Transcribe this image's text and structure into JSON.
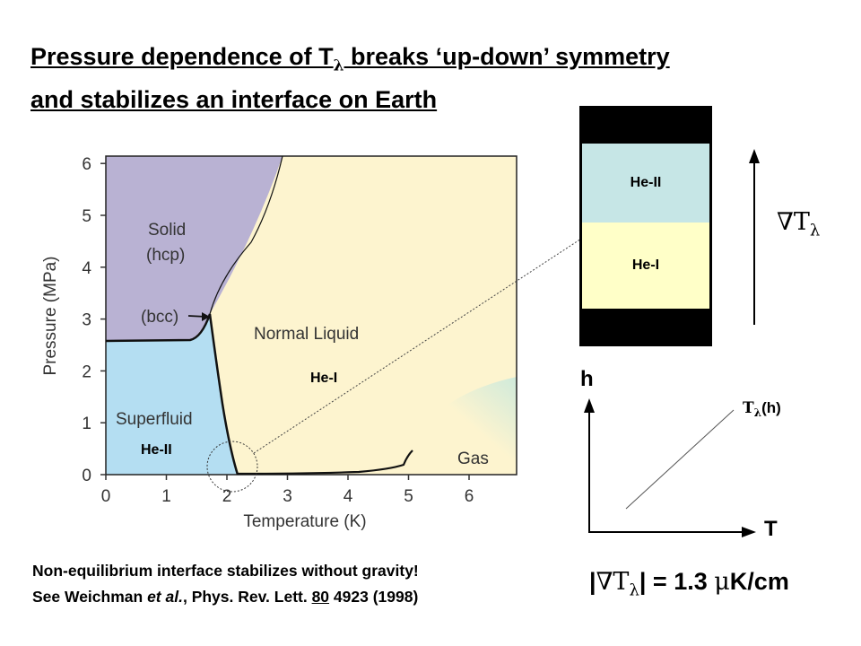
{
  "title": {
    "line1_pre": "Pressure dependence of T",
    "line1_sub": "λ",
    "line1_post": " breaks ‘up-down’ symmetry ",
    "line2": "and stabilizes an interface on Earth  "
  },
  "phase_diagram": {
    "ylabel": "Pressure (MPa)",
    "xlabel": "Temperature (K)",
    "x_ticks": [
      "0",
      "1",
      "2",
      "3",
      "4",
      "5",
      "6"
    ],
    "y_ticks": [
      "0",
      "1",
      "2",
      "3",
      "4",
      "5",
      "6"
    ],
    "regions": {
      "solid": "Solid",
      "hcp": "(hcp)",
      "bcc": "(bcc)",
      "normal_liquid": "Normal Liquid",
      "superfluid": "Superfluid",
      "gas": "Gas"
    },
    "overlay_he1": "He-I",
    "overlay_he2": "He-II",
    "colors": {
      "solid": "#b9b2d3",
      "superfluid": "#b4def2",
      "liquid": "#fdf4cf",
      "gas": "#d9efe1"
    }
  },
  "column": {
    "top": "He-II",
    "bottom": "He-I",
    "colors": {
      "top": "#c6e6e6",
      "bottom": "#ffffc8",
      "ends": "#000000"
    }
  },
  "gradient_label_symbol": "∇T",
  "gradient_label_sub": "λ",
  "lambda_graph": {
    "h": "h",
    "T": "T",
    "curve_sym": "T",
    "curve_sub": "λ",
    "curve_post": "(h)"
  },
  "gradient_value": {
    "open": "|",
    "nabla": "∇T",
    "sub": "λ",
    "close": "|",
    "rest_pre": " = 1.3 ",
    "mu": "μ",
    "unit": "K/cm"
  },
  "footer": {
    "line1": "Non-equilibrium interface stabilizes without gravity!",
    "line2_pre": "See Weichman ",
    "line2_italic": "et al.",
    "line2_mid": ", Phys. Rev. Lett. ",
    "line2_volume": "80",
    "line2_post": " 4923 (1998)"
  }
}
